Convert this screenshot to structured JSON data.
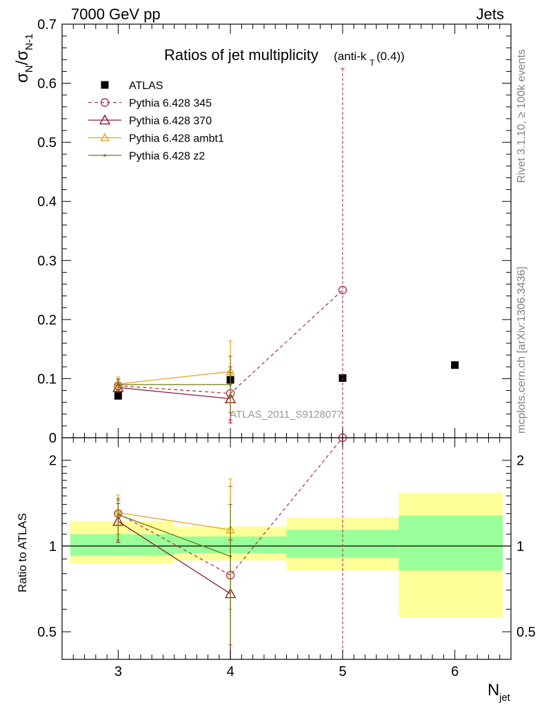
{
  "header": {
    "left": "7000 GeV pp",
    "right": "Jets",
    "title_main": "Ratios of jet multiplicity",
    "title_sub": "(anti-k",
    "title_sub_T": "T",
    "title_sub_end": "(0.4))",
    "watermark": "ATLAS_2011_S9128077"
  },
  "side_labels": {
    "rivet": "Rivet 3.1.10, ≥ 100k events",
    "mcplots": "mcplots.cern.ch [arXiv:1306.3436]"
  },
  "axes": {
    "ylabel_main_sigma": "σ",
    "ylabel_main_sub1": "N",
    "ylabel_main_slash": "/σ",
    "ylabel_main_sub2": "N-1",
    "ylabel_ratio": "Ratio to ATLAS",
    "xlabel_main": "N",
    "xlabel_sub": "jet"
  },
  "chart_data": [
    {
      "type": "scatter",
      "panel": "main",
      "xlim": [
        2.5,
        6.5
      ],
      "ylim": [
        0,
        0.7
      ],
      "yticks": [
        "0",
        "0.1",
        "0.2",
        "0.3",
        "0.4",
        "0.5",
        "0.6",
        "0.7"
      ],
      "yticks_val": [
        0,
        0.1,
        0.2,
        0.3,
        0.4,
        0.5,
        0.6,
        0.7
      ],
      "legend_position": "top-left",
      "series": [
        {
          "name": "ATLAS",
          "color": "#000000",
          "marker": "square",
          "line": "none",
          "x": [
            3,
            4,
            5,
            6
          ],
          "y": [
            0.071,
            0.098,
            0.101,
            0.123
          ]
        },
        {
          "name": "Pythia 6.428 345",
          "color": "#b23850",
          "marker": "circle",
          "line": "dashed",
          "x": [
            3,
            4,
            5
          ],
          "y": [
            0.088,
            0.075,
            0.25
          ],
          "err_lo": [
            0.078,
            0.03,
            0.0
          ],
          "err_hi": [
            0.098,
            0.12,
            0.625
          ]
        },
        {
          "name": "Pythia 6.428 370",
          "color": "#8b1a2e",
          "marker": "triangle",
          "line": "solid",
          "x": [
            3,
            4
          ],
          "y": [
            0.085,
            0.066
          ],
          "err_lo": [
            0.077,
            0.025
          ],
          "err_hi": [
            0.093,
            0.11
          ]
        },
        {
          "name": "Pythia 6.428 ambt1",
          "color": "#e8a317",
          "marker": "triangle",
          "line": "solid",
          "x": [
            3,
            4
          ],
          "y": [
            0.091,
            0.112
          ],
          "err_lo": [
            0.08,
            0.06
          ],
          "err_hi": [
            0.103,
            0.164
          ]
        },
        {
          "name": "Pythia 6.428 z2",
          "color": "#6b7a10",
          "marker": "dot",
          "line": "solid",
          "x": [
            3,
            4
          ],
          "y": [
            0.09,
            0.09
          ],
          "err_lo": [
            0.081,
            0.043
          ],
          "err_hi": [
            0.1,
            0.138
          ]
        }
      ]
    },
    {
      "type": "scatter",
      "panel": "ratio",
      "xlim": [
        2.5,
        6.5
      ],
      "ylim": [
        0.4,
        2.4
      ],
      "yscale": "log",
      "yticks": [
        "0.5",
        "1",
        "2"
      ],
      "yticks_val": [
        0.5,
        1,
        2
      ],
      "xticks": [
        "3",
        "4",
        "5",
        "6"
      ],
      "xticks_val": [
        3,
        4,
        5,
        6
      ],
      "bands": [
        {
          "x0": 2.5,
          "x1": 3.5,
          "yellow": [
            0.865,
            1.225
          ],
          "green": [
            0.925,
            1.1
          ]
        },
        {
          "x0": 3.5,
          "x1": 4.5,
          "yellow": [
            0.89,
            1.17
          ],
          "green": [
            0.945,
            1.08
          ]
        },
        {
          "x0": 4.5,
          "x1": 5.5,
          "yellow": [
            0.82,
            1.26
          ],
          "green": [
            0.91,
            1.14
          ]
        },
        {
          "x0": 5.5,
          "x1": 6.5,
          "yellow": [
            0.56,
            1.54
          ],
          "green": [
            0.82,
            1.28
          ]
        }
      ],
      "series": [
        {
          "name": "Pythia 6.428 345",
          "color": "#b23850",
          "marker": "circle",
          "line": "dashed",
          "x": [
            3,
            4,
            5
          ],
          "y": [
            1.3,
            0.79,
            2.4
          ],
          "err_lo": [
            1.1,
            0.38,
            0.38
          ],
          "err_hi": [
            1.45,
            1.62,
            2.4
          ]
        },
        {
          "name": "Pythia 6.428 370",
          "color": "#8b1a2e",
          "marker": "triangle",
          "line": "solid",
          "x": [
            3,
            4
          ],
          "y": [
            1.22,
            0.68
          ],
          "err_lo": [
            1.03,
            0.38
          ],
          "err_hi": [
            1.41,
            1.05
          ]
        },
        {
          "name": "Pythia 6.428 ambt1",
          "color": "#e8a317",
          "marker": "triangle",
          "line": "solid",
          "x": [
            3,
            4
          ],
          "y": [
            1.31,
            1.14
          ],
          "err_lo": [
            1.1,
            0.6
          ],
          "err_hi": [
            1.51,
            1.72
          ]
        },
        {
          "name": "Pythia 6.428 z2",
          "color": "#6b7a10",
          "marker": "dot",
          "line": "solid",
          "x": [
            3,
            4
          ],
          "y": [
            1.29,
            0.92
          ],
          "err_lo": [
            1.05,
            0.45
          ],
          "err_hi": [
            1.47,
            1.4
          ]
        }
      ]
    }
  ]
}
